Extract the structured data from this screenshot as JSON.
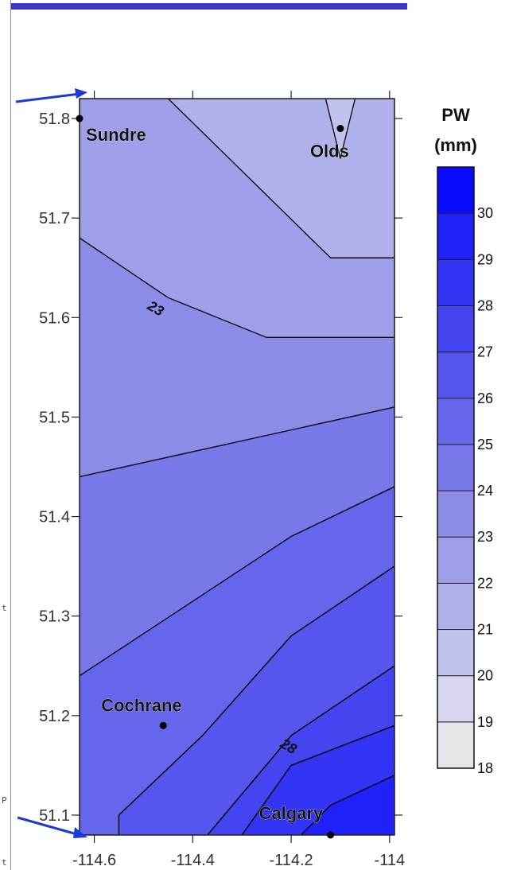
{
  "chart_data": {
    "type": "contour",
    "colorbar_title": "PW",
    "colorbar_unit": "(mm)",
    "x_ticks": [
      "-114.6",
      "-114.4",
      "-114.2",
      "-114"
    ],
    "x_tick_values": [
      -114.6,
      -114.4,
      -114.2,
      -114.0
    ],
    "y_ticks": [
      "51.8",
      "51.7",
      "51.6",
      "51.5",
      "51.4",
      "51.3",
      "51.2",
      "51.1"
    ],
    "y_tick_values": [
      51.8,
      51.7,
      51.6,
      51.5,
      51.4,
      51.3,
      51.2,
      51.1
    ],
    "xlim": [
      -114.63,
      -113.99
    ],
    "ylim": [
      51.08,
      51.82
    ],
    "levels": [
      18,
      19,
      20,
      21,
      22,
      23,
      24,
      25,
      26,
      27,
      28,
      29,
      30
    ],
    "level_colors": [
      "#e6e6ea",
      "#d6d6f0",
      "#c2c2ee",
      "#b0b0ec",
      "#9e9ee9",
      "#8c8ce8",
      "#7878ea",
      "#6666ec",
      "#5656ee",
      "#4444f0",
      "#3434f4",
      "#2020f8",
      "#0a0aff"
    ],
    "bands": [
      {
        "level": 20,
        "path": [
          [
            -114.13,
            51.82
          ],
          [
            -114.07,
            51.82
          ],
          [
            -114.1,
            51.76
          ]
        ]
      },
      {
        "level": 21,
        "path": [
          [
            -114.45,
            51.82
          ],
          [
            -113.99,
            51.82
          ],
          [
            -113.99,
            51.66
          ],
          [
            -114.12,
            51.66
          ]
        ]
      },
      {
        "level": 22,
        "path": [
          [
            -114.63,
            51.82
          ],
          [
            -113.99,
            51.82
          ],
          [
            -113.99,
            51.58
          ],
          [
            -114.25,
            51.58
          ],
          [
            -114.45,
            51.62
          ],
          [
            -114.63,
            51.68
          ]
        ]
      },
      {
        "level": 23,
        "path": [
          [
            -114.63,
            51.82
          ],
          [
            -113.99,
            51.82
          ],
          [
            -113.99,
            51.51
          ],
          [
            -114.4,
            51.46
          ],
          [
            -114.63,
            51.44
          ]
        ]
      },
      {
        "level": 24,
        "path": [
          [
            -114.63,
            51.44
          ],
          [
            -113.99,
            51.51
          ],
          [
            -113.99,
            51.43
          ],
          [
            -114.2,
            51.38
          ],
          [
            -114.4,
            51.28
          ],
          [
            -114.63,
            51.24
          ]
        ]
      },
      {
        "level": 25,
        "path": [
          [
            -114.2,
            51.38
          ],
          [
            -113.99,
            51.43
          ],
          [
            -113.99,
            51.35
          ],
          [
            -114.2,
            51.28
          ],
          [
            -114.38,
            51.18
          ],
          [
            -114.55,
            51.1
          ],
          [
            -114.55,
            51.08
          ],
          [
            -114.63,
            51.08
          ],
          [
            -114.63,
            51.24
          ]
        ]
      },
      {
        "level": 26,
        "path": [
          [
            -114.2,
            51.28
          ],
          [
            -113.99,
            51.35
          ],
          [
            -113.99,
            51.25
          ],
          [
            -114.2,
            51.18
          ],
          [
            -114.37,
            51.08
          ],
          [
            -114.55,
            51.08
          ],
          [
            -114.55,
            51.1
          ],
          [
            -114.38,
            51.18
          ]
        ]
      },
      {
        "level": 27,
        "path": [
          [
            -114.2,
            51.18
          ],
          [
            -113.99,
            51.25
          ],
          [
            -113.99,
            51.19
          ],
          [
            -114.2,
            51.15
          ],
          [
            -114.3,
            51.08
          ],
          [
            -114.37,
            51.08
          ]
        ]
      },
      {
        "level": 28,
        "path": [
          [
            -114.2,
            51.15
          ],
          [
            -113.99,
            51.19
          ],
          [
            -113.99,
            51.08
          ],
          [
            -114.3,
            51.08
          ]
        ]
      },
      {
        "level": 29,
        "path": [
          [
            -114.12,
            51.11
          ],
          [
            -113.99,
            51.14
          ],
          [
            -113.99,
            51.08
          ],
          [
            -114.18,
            51.08
          ]
        ]
      }
    ],
    "contour_labels": [
      {
        "text": "23",
        "lon": -114.48,
        "lat": 51.605
      },
      {
        "text": "28",
        "lon": -114.21,
        "lat": 51.165
      }
    ],
    "cities": [
      {
        "name": "Sundre",
        "lon": -114.63,
        "lat": 51.8
      },
      {
        "name": "Olds",
        "lon": -114.1,
        "lat": 51.79
      },
      {
        "name": "Cochrane",
        "lon": -114.46,
        "lat": 51.19
      },
      {
        "name": "Calgary",
        "lon": -114.12,
        "lat": 51.08
      }
    ]
  },
  "edge_glyphs": [
    "t",
    "P",
    "t"
  ]
}
